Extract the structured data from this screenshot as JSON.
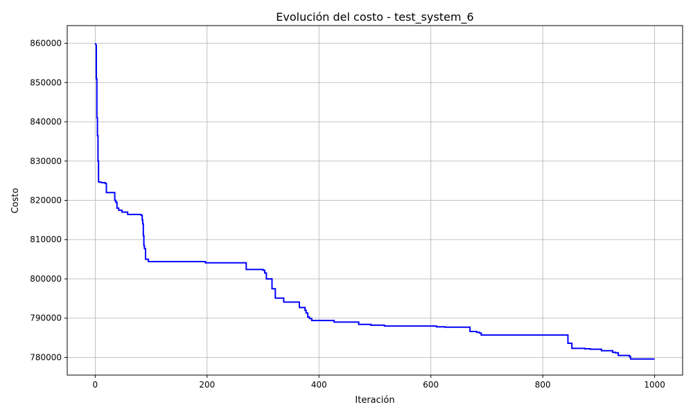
{
  "chart_data": {
    "type": "line",
    "title": "Evolución del costo - test_system_6",
    "xlabel": "Iteración",
    "ylabel": "Costo",
    "xlim": [
      -50,
      1050
    ],
    "ylim": [
      775500,
      864500
    ],
    "xticks": [
      0,
      200,
      400,
      600,
      800,
      1000
    ],
    "yticks": [
      780000,
      790000,
      800000,
      810000,
      820000,
      830000,
      840000,
      850000,
      860000
    ],
    "grid": true,
    "series": [
      {
        "color": "#0000ff",
        "x": [
          0,
          2,
          2,
          3,
          3,
          4,
          4,
          5,
          5,
          6,
          6,
          8,
          8,
          12,
          12,
          18,
          18,
          20,
          20,
          22,
          22,
          35,
          35,
          37,
          37,
          39,
          39,
          42,
          42,
          48,
          48,
          58,
          58,
          82,
          82,
          84,
          84,
          85,
          85,
          86,
          86,
          87,
          87,
          88,
          88,
          90,
          90,
          95,
          95,
          197,
          197,
          270,
          270,
          300,
          300,
          303,
          303,
          306,
          306,
          316,
          316,
          322,
          322,
          337,
          337,
          365,
          365,
          375,
          375,
          377,
          377,
          380,
          380,
          383,
          383,
          387,
          387,
          427,
          427,
          471,
          471,
          493,
          493,
          517,
          517,
          610,
          610,
          625,
          625,
          670,
          670,
          682,
          682,
          687,
          687,
          690,
          690,
          845,
          845,
          852,
          852,
          875,
          875,
          885,
          885,
          905,
          905,
          925,
          925,
          930,
          930,
          935,
          935,
          955,
          955,
          957,
          957,
          1000
        ],
        "y": [
          860000,
          859500,
          851000,
          851000,
          841000,
          841000,
          836500,
          836500,
          830000,
          830000,
          824700,
          824700,
          824600,
          824600,
          824500,
          824500,
          824300,
          824300,
          822000,
          822000,
          822000,
          822000,
          820000,
          820000,
          819500,
          819500,
          818000,
          818000,
          817500,
          817500,
          817000,
          817000,
          816400,
          816400,
          816200,
          816200,
          815000,
          815000,
          814000,
          814000,
          811000,
          811000,
          808500,
          808500,
          807700,
          807700,
          805000,
          805000,
          804400,
          804400,
          804100,
          804100,
          802400,
          802400,
          802200,
          802200,
          801500,
          801500,
          800000,
          800000,
          797500,
          797500,
          795100,
          795100,
          794100,
          794100,
          792700,
          792700,
          792000,
          792000,
          791300,
          791300,
          790300,
          790300,
          789900,
          789900,
          789400,
          789400,
          789000,
          789000,
          788400,
          788400,
          788200,
          788200,
          788000,
          788000,
          787800,
          787800,
          787700,
          787700,
          786600,
          786600,
          786400,
          786400,
          786200,
          786200,
          785700,
          785700,
          783600,
          783600,
          782300,
          782300,
          782200,
          782200,
          782100,
          782100,
          781700,
          781700,
          781300,
          781300,
          781200,
          781200,
          780500,
          780500,
          780200,
          780200,
          779600,
          779600
        ]
      }
    ]
  }
}
